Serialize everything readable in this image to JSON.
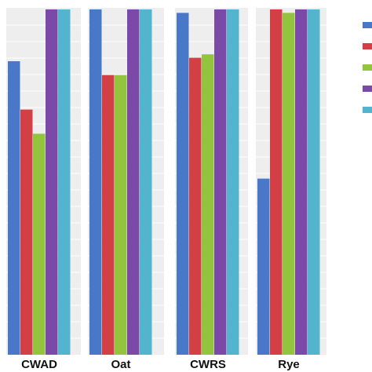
{
  "chart_data": {
    "type": "bar",
    "title": "",
    "xlabel": "",
    "ylabel": "",
    "categories": [
      "CWAD",
      "Oat",
      "CWRS",
      "Rye"
    ],
    "ylim": [
      0,
      100
    ],
    "series": [
      {
        "color": "#4a78c8",
        "values": [
          85,
          100,
          99,
          51
        ]
      },
      {
        "color": "#d23f45",
        "values": [
          71,
          81,
          86,
          100
        ]
      },
      {
        "color": "#92c43d",
        "values": [
          64,
          81,
          87,
          99
        ]
      },
      {
        "color": "#7b4aa8",
        "values": [
          100,
          100,
          100,
          100
        ]
      },
      {
        "color": "#52b4cd",
        "values": [
          100,
          100,
          100,
          100
        ]
      }
    ],
    "legend": {
      "position": "right",
      "swatches": [
        "#4a78c8",
        "#d23f45",
        "#92c43d",
        "#7b4aa8",
        "#52b4cd"
      ]
    },
    "grid": false,
    "panel_background": "#eeeeee"
  }
}
